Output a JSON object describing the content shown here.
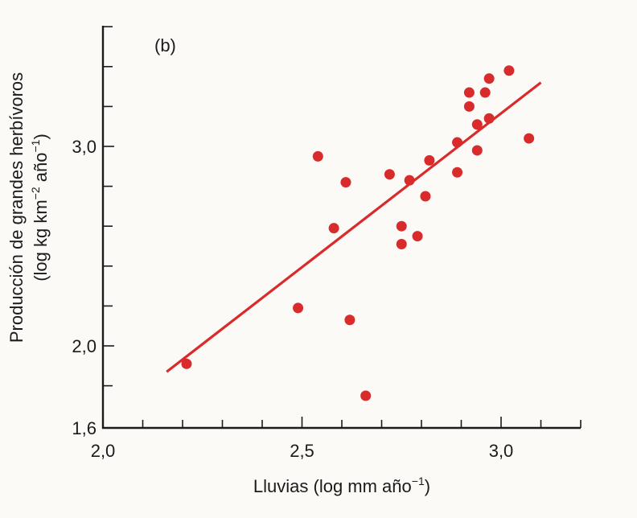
{
  "chart_data": {
    "type": "scatter",
    "panel_label": "(b)",
    "xlabel": "Lluvias (log mm año",
    "xlabel_sup": "−1",
    "xlabel_end": ")",
    "ylabel_line1": "Producción de grandes herbívoros",
    "ylabel_line2_a": "(log kg km",
    "ylabel_line2_sup1": "−2",
    "ylabel_line2_b": " año",
    "ylabel_line2_sup2": "−1",
    "ylabel_line2_c": ")",
    "xlim": [
      2.0,
      3.2
    ],
    "ylim": [
      1.6,
      3.6
    ],
    "x_ticks": [
      {
        "value": 2.0,
        "label": "2,0"
      },
      {
        "value": 2.5,
        "label": "2,5"
      },
      {
        "value": 3.0,
        "label": "3,0"
      }
    ],
    "x_minor_ticks": [
      2.1,
      2.2,
      2.3,
      2.4,
      2.6,
      2.7,
      2.8,
      2.9,
      3.1,
      3.2
    ],
    "y_ticks": [
      {
        "value": 1.6,
        "label": "1,6"
      },
      {
        "value": 2.0,
        "label": "2,0"
      },
      {
        "value": 3.0,
        "label": "3,0"
      }
    ],
    "y_minor_ticks": [
      1.8,
      2.2,
      2.4,
      2.6,
      2.8,
      3.2,
      3.4,
      3.6
    ],
    "grid": false,
    "points": [
      {
        "x": 2.21,
        "y": 1.91
      },
      {
        "x": 2.49,
        "y": 2.19
      },
      {
        "x": 2.54,
        "y": 2.95
      },
      {
        "x": 2.58,
        "y": 2.59
      },
      {
        "x": 2.61,
        "y": 2.82
      },
      {
        "x": 2.62,
        "y": 2.13
      },
      {
        "x": 2.66,
        "y": 1.75
      },
      {
        "x": 2.72,
        "y": 2.86
      },
      {
        "x": 2.75,
        "y": 2.6
      },
      {
        "x": 2.75,
        "y": 2.51
      },
      {
        "x": 2.77,
        "y": 2.83
      },
      {
        "x": 2.79,
        "y": 2.55
      },
      {
        "x": 2.81,
        "y": 2.75
      },
      {
        "x": 2.82,
        "y": 2.93
      },
      {
        "x": 2.89,
        "y": 3.02
      },
      {
        "x": 2.89,
        "y": 2.87
      },
      {
        "x": 2.92,
        "y": 3.27
      },
      {
        "x": 2.92,
        "y": 3.2
      },
      {
        "x": 2.94,
        "y": 3.11
      },
      {
        "x": 2.94,
        "y": 2.98
      },
      {
        "x": 2.96,
        "y": 3.27
      },
      {
        "x": 2.97,
        "y": 3.34
      },
      {
        "x": 2.97,
        "y": 3.14
      },
      {
        "x": 3.02,
        "y": 3.38
      },
      {
        "x": 3.07,
        "y": 3.04
      }
    ],
    "fit_line": {
      "x": [
        2.16,
        3.1
      ],
      "y": [
        1.87,
        3.32
      ]
    },
    "point_color": "#d92b2b",
    "line_color": "#d92b2b",
    "axis_color": "#1b1b1b"
  }
}
